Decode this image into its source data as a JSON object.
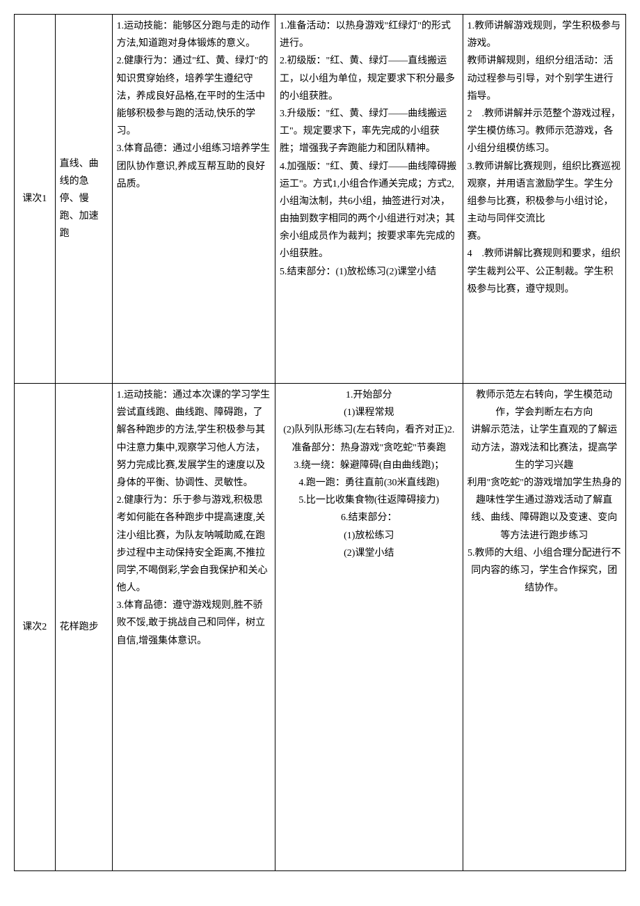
{
  "table": {
    "rows": [
      {
        "col1": "课次1",
        "col2": "直线、曲线的急停、慢跑、加速跑",
        "col3": "1.运动技能：能够区分跑与走的动作方法,知道跑对身体锻炼的意义。\n2.健康行为：通过\"红、黄、绿灯\"的知识贯穿始终，培养学生遵纪守法，养成良好品格,在平时的生活中能够积极参与跑的活动,快乐的学习。\n3.体育品德：通过小组练习培养学生团队协作意识,养成互帮互助的良好品质。",
        "col4": "1.准备活动：以热身游戏\"红绿灯\"的形式进行。\n2.初级版：\"红、黄、绿灯——直线搬运工，以小组为单位，规定要求下积分最多的小组获胜。\n3.升级版：\"红、黄、绿灯——曲线搬运工\"。规定要求下，率先完成的小组获胜；增强我子奔跑能力和团队精神。\n4.加强版：\"红、黄、绿灯——曲线障碍搬运工\"。方式1,小组合作通关完成；方式2,小组淘汰制，共6小组，抽签进行对决，由抽到数字相同的两个小组进行对决；其余小组成员作为裁判；按要求率先完成的小组获胜。\n5.结束部分：(1)放松练习(2)课堂小结",
        "col5": "1.教师讲解游戏规则，学生积极参与游戏。\n教师讲解规则，组织分组活动：活动过程参与引导，对个别学生进行指导。\n2　.教师讲解并示范整个游戏过程，学生模仿练习。教师示范游戏，各小组分组模仿练习。\n3.教师讲解比赛规则，组织比赛巡视观察，并用语言激励学生。学生分组参与比赛，积极参与小组讨论，主动与同伴交流比\n赛。\n4　.教师讲解比赛规则和要求，组织学生裁判公平、公正制裁。学生积极参与比赛，遵守规则。"
      },
      {
        "col1": "课次2",
        "col2": "花样跑步",
        "col3": "1.运动技能：通过本次课的学习学生尝试直线跑、曲线跑、障碍跑，了解各种跑步的方法,学生积极参与其中注意力集中,观察学习他人方法，努力完成比赛,发展学生的速度以及身体的平衡、协调性、灵敏性。\n2.健康行为：乐于参与游戏,积极思考如何能在各种跑步中提高速度,关注小组比赛，为队友呐喊助威,在跑步过程中主动保持安全距离,不推拉同学,不喝倒彩,学会自我保护和关心他人。\n3.体育品德：遵守游戏规则,胜不骄败不馁,敢于挑战自己和同伴，树立自信,增强集体意识。",
        "col4": "1.开始部分\n(1)课程常规\n(2)队列队形练习(左右转向，看齐对正)2.准备部分：热身游戏\"贪吃蛇\"节奏跑\n3.绕一绕：躲避障碍(自由曲线跑)；\n4.跑一跑：勇往直前(30米直线跑)\n5.比一比收集食物(往返障碍接力)\n6.结束部分：\n(1)放松练习\n(2)课堂小结",
        "col5": "教师示范左右转向，学生模范动作，学会判断左右方向\n讲解示范法，让学生直观的了解运动方法，游戏法和比赛法，提高学生的学习兴趣\n利用\"贪吃蛇\"的游戏增加学生热身的趣味性学生通过游戏活动了解直线、曲线、障碍跑以及变速、变向等方法进行跑步练习\n5.教师的大组、小组合理分配进行不同内容的练习，学生合作探究，团结协作。"
      }
    ]
  }
}
